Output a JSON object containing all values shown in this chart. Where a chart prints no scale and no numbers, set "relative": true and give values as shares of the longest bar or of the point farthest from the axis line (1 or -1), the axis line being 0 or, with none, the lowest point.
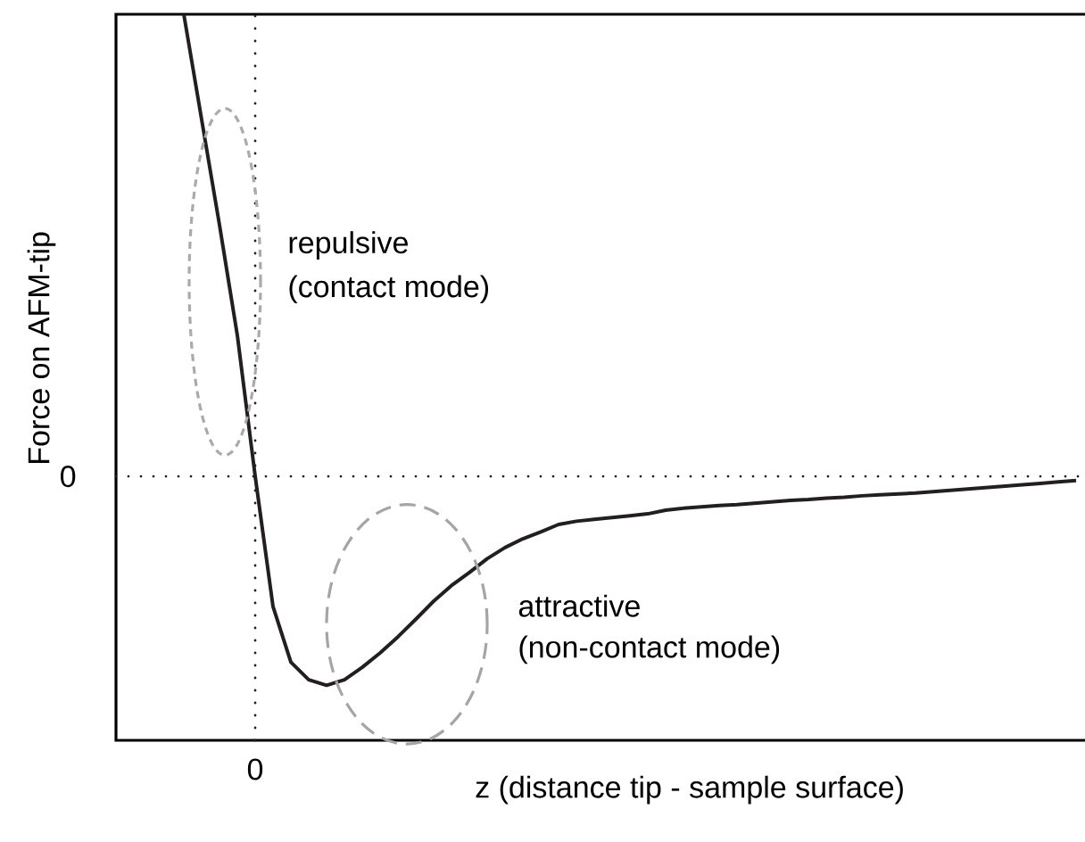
{
  "chart_data": {
    "type": "line",
    "relative": true,
    "xlabel": "z (distance tip - sample surface)",
    "ylabel": "Force on AFM-tip",
    "categories": [
      null,
      null,
      null,
      null,
      null,
      null,
      null,
      null,
      null,
      null,
      null,
      null,
      null,
      null,
      null,
      null,
      null,
      null,
      null,
      null,
      null,
      null,
      null,
      null,
      null,
      null,
      null,
      null,
      null,
      null,
      null,
      null,
      null,
      null,
      null,
      null,
      null,
      null,
      null,
      null,
      null,
      null,
      null,
      null,
      null,
      null,
      null,
      null,
      null,
      null,
      null
    ],
    "values": [
      1.0,
      0.772,
      0.544,
      0.305,
      0,
      -0.282,
      -0.402,
      -0.44,
      -0.452,
      -0.44,
      -0.413,
      -0.382,
      -0.347,
      -0.309,
      -0.27,
      -0.236,
      -0.208,
      -0.178,
      -0.154,
      -0.135,
      -0.12,
      -0.104,
      -0.097,
      -0.093,
      -0.089,
      -0.085,
      -0.081,
      -0.073,
      -0.069,
      -0.066,
      -0.063,
      -0.061,
      -0.058,
      -0.055,
      -0.052,
      -0.05,
      -0.047,
      -0.045,
      -0.042,
      -0.04,
      -0.038,
      -0.036,
      -0.033,
      -0.03,
      -0.027,
      -0.024,
      -0.021,
      -0.018,
      -0.015,
      -0.012,
      -0.009
    ],
    "color": "#231f20",
    "line_style": "solid",
    "marker": "none",
    "ref_lines": [
      {
        "axis": "y",
        "value": 0,
        "label": "0",
        "line_style": "dotted",
        "color": "#231f20"
      },
      {
        "axis": "x",
        "label": "0",
        "line_style": "dotted",
        "color": "#231f20"
      }
    ],
    "annotations": [
      "repulsive",
      "(contact mode)",
      "attractive",
      "(non-contact mode)"
    ]
  }
}
